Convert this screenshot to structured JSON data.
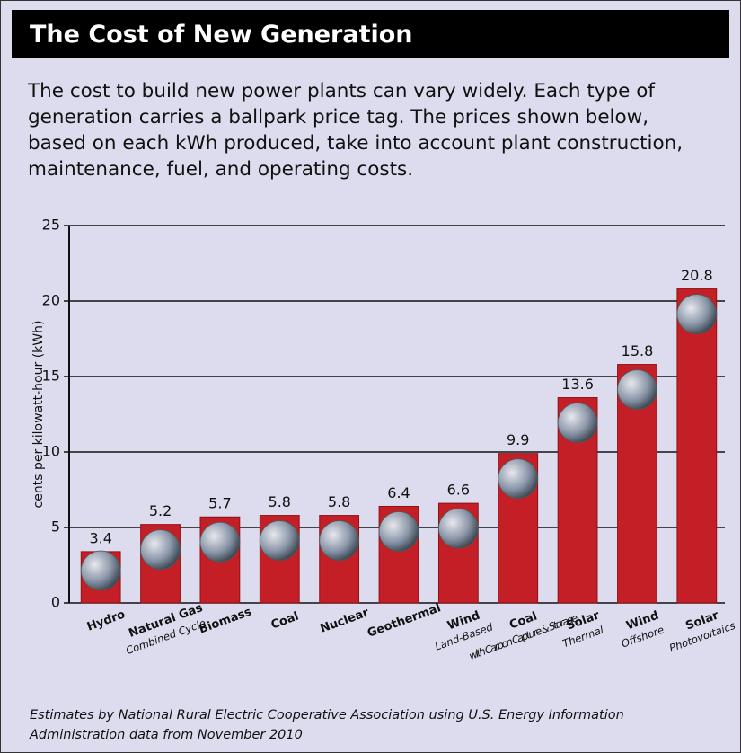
{
  "chart_data": {
    "type": "bar",
    "title": "The Cost of New Generation",
    "description": [
      "The cost to build new power plants can  vary widely. Each type of",
      "generation carries a ballpark price tag. The prices shown below,",
      "based on each kWh produced, take into account plant construction,",
      "maintenance, fuel, and operating costs."
    ],
    "y_label": "cents per kilowatt-hour (kWh)",
    "categories": [
      "Hydro",
      "Natural Gas",
      "Biomass",
      "Coal",
      "Nuclear",
      "Geothermal",
      "Wind",
      "Coal",
      "Solar",
      "Wind",
      "Solar"
    ],
    "category_subtitles": [
      null,
      "Combined Cycle",
      null,
      null,
      null,
      null,
      "Land-Based",
      "with Carbon Capture & Storage",
      "Thermal",
      "Offshore",
      "Photovoltaics"
    ],
    "values": [
      3.4,
      5.2,
      5.7,
      5.8,
      5.8,
      6.4,
      6.6,
      9.9,
      13.6,
      15.8,
      20.8
    ],
    "color": "#c41f26",
    "ylim": [
      0,
      25
    ],
    "yticks": [
      0,
      5,
      10,
      15,
      20,
      25
    ],
    "grid": true,
    "footnote": [
      "Estimates by National Rural Electric Cooperative Association using U.S. Energy Information",
      "Administration data from November 2010"
    ]
  }
}
